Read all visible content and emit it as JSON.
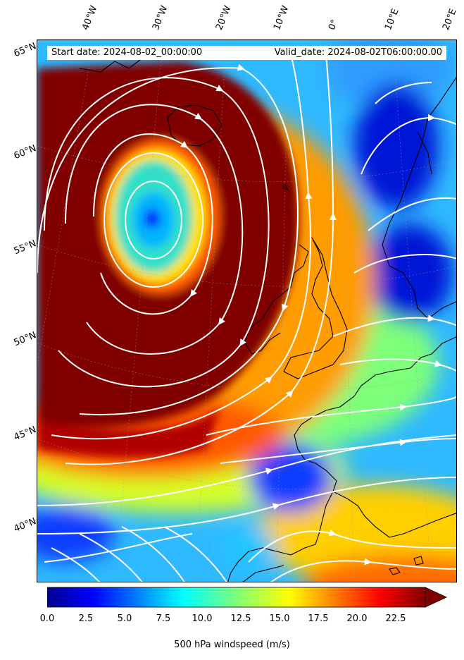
{
  "header": {
    "start_date": "Start date: 2024-08-02_00:00:00",
    "valid_date": "Valid_date: 2024-08-02T06:00:00.00"
  },
  "lon_labels": [
    "40°W",
    "30°W",
    "20°W",
    "10°W",
    "0°",
    "10°E",
    "20°E"
  ],
  "lat_labels": [
    "65°N",
    "60°N",
    "55°N",
    "50°N",
    "45°N",
    "40°N"
  ],
  "colorbar": {
    "label": "500 hPa windspeed (m/s)",
    "ticks": [
      "0.0",
      "2.5",
      "5.0",
      "7.5",
      "10.0",
      "12.5",
      "15.0",
      "17.5",
      "20.0",
      "22.5"
    ],
    "extend": "max",
    "colormap": "jet"
  },
  "colors": {
    "low": "#00008f",
    "mid": "#7dff7a",
    "high": "#800000",
    "streamlines": "#ffffff",
    "coastline": "#000000"
  }
}
